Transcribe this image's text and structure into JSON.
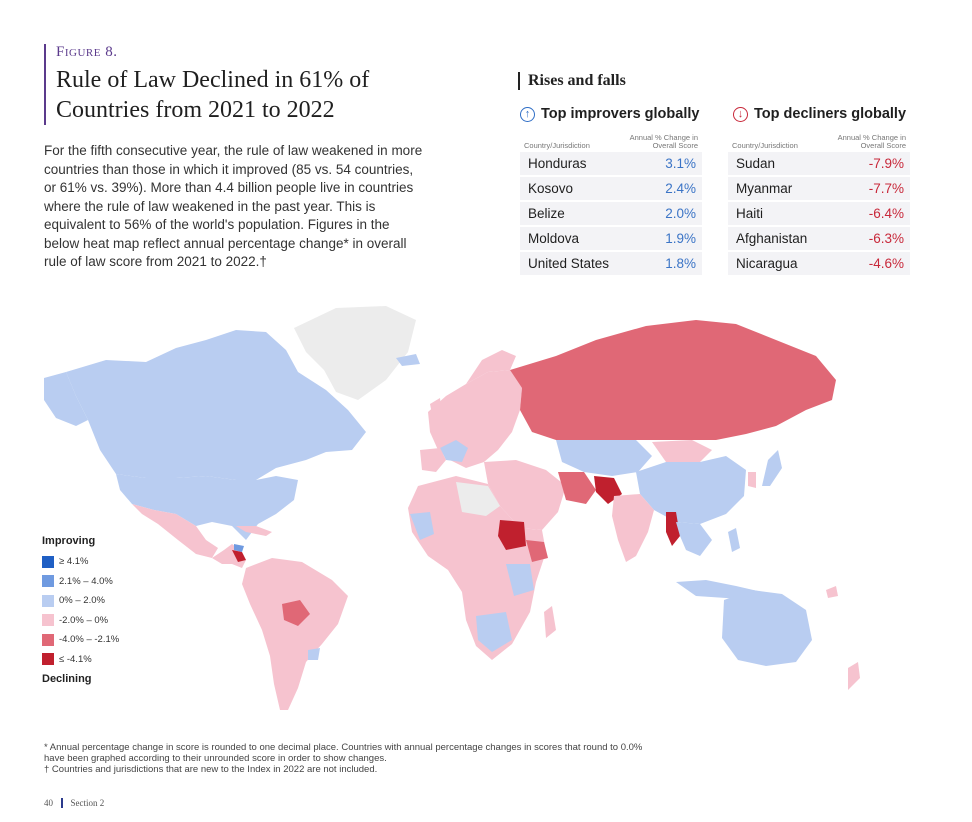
{
  "figure_label": "Figure 8.",
  "title_line1": "Rule of Law Declined in 61% of",
  "title_line2": "Countries from 2021 to 2022",
  "intro": "For the fifth consecutive year, the rule of law weakened in more countries than those in which it improved (85 vs. 54 countries, or 61% vs. 39%). More than 4.4 billion people live in countries where the rule of law weakened in the past year. This is equivalent to 56% of the world's population. Figures in the below heat map reflect annual percentage change* in overall rule of law score from 2021 to 2022.†",
  "rises_falls_title": "Rises and falls",
  "improvers": {
    "heading": "Top improvers globally",
    "icon": "arrow-up-circle-icon",
    "col_country": "Country/Jurisdiction",
    "col_change": "Annual % Change in Overall Score",
    "rows": [
      {
        "country": "Honduras",
        "value": "3.1%"
      },
      {
        "country": "Kosovo",
        "value": "2.4%"
      },
      {
        "country": "Belize",
        "value": "2.0%"
      },
      {
        "country": "Moldova",
        "value": "1.9%"
      },
      {
        "country": "United States",
        "value": "1.8%"
      }
    ]
  },
  "decliners": {
    "heading": "Top decliners globally",
    "icon": "arrow-down-circle-icon",
    "col_country": "Country/Jurisdiction",
    "col_change": "Annual % Change in Overall Score",
    "rows": [
      {
        "country": "Sudan",
        "value": "-7.9%"
      },
      {
        "country": "Myanmar",
        "value": "-7.7%"
      },
      {
        "country": "Haiti",
        "value": "-6.4%"
      },
      {
        "country": "Afghanistan",
        "value": "-6.3%"
      },
      {
        "country": "Nicaragua",
        "value": "-4.6%"
      }
    ]
  },
  "legend": {
    "top_label": "Improving",
    "bottom_label": "Declining",
    "items": [
      {
        "label": "≥ 4.1%",
        "color": "#1f5fc4"
      },
      {
        "label": "2.1% – 4.0%",
        "color": "#6f9ae0"
      },
      {
        "label": "0% – 2.0%",
        "color": "#b9cdf1"
      },
      {
        "label": "-2.0% – 0%",
        "color": "#f6c3cf"
      },
      {
        "label": "-4.0% – -2.1%",
        "color": "#e06876"
      },
      {
        "label": "≤ -4.1%",
        "color": "#c0202e"
      }
    ]
  },
  "colors": {
    "no_data": "#ececec"
  },
  "footnote_1": "* Annual percentage change in score is rounded to one decimal place. Countries with annual percentage changes in scores that round to 0.0% have been graphed according to their unrounded score in order to show changes.",
  "footnote_2": "† Countries and jurisdictions that are new to the Index in 2022 are not included.",
  "page_number": "40",
  "section": "Section 2"
}
